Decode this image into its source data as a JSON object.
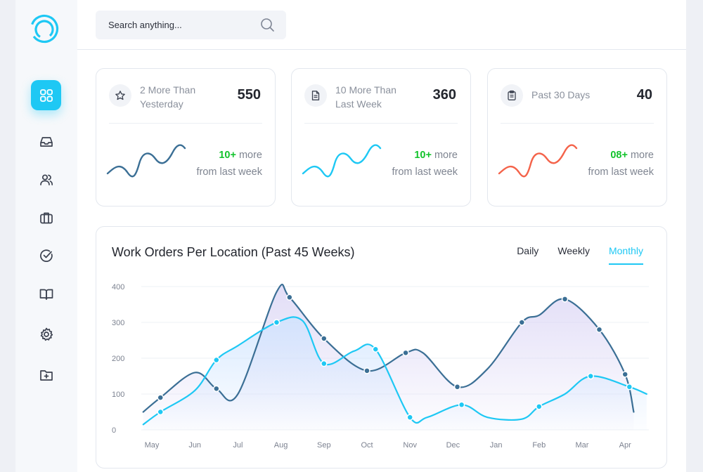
{
  "search": {
    "placeholder": "Search anything..."
  },
  "sidebar": {
    "items": [
      {
        "name": "dashboard-grid-icon",
        "active": true
      },
      {
        "name": "inbox-icon",
        "active": false
      },
      {
        "name": "users-icon",
        "active": false
      },
      {
        "name": "briefcase-icon",
        "active": false
      },
      {
        "name": "check-circle-icon",
        "active": false
      },
      {
        "name": "book-open-icon",
        "active": false
      },
      {
        "name": "gear-icon",
        "active": false
      },
      {
        "name": "folder-plus-icon",
        "active": false
      }
    ]
  },
  "cards": [
    {
      "icon": "star-icon",
      "label": "2 More Than Yesterday",
      "value": "550",
      "note_num": "10+",
      "note_rest": " more",
      "note_line2": "from last week",
      "color": "#3b6f95",
      "num_color": "#13c32c"
    },
    {
      "icon": "document-icon",
      "label": "10 More Than Last Week",
      "value": "360",
      "note_num": "10+",
      "note_rest": " more",
      "note_line2": "from last week",
      "color": "#1ec8f4",
      "num_color": "#13c32c"
    },
    {
      "icon": "clipboard-icon",
      "label": "Past 30 Days",
      "value": "40",
      "note_num": "08+",
      "note_rest": " more",
      "note_line2": "from last week",
      "color": "#f4634a",
      "num_color": "#13c32c"
    }
  ],
  "chart": {
    "title": "Work Orders Per Location (Past 45 Weeks)",
    "tabs": [
      {
        "label": "Daily",
        "active": false
      },
      {
        "label": "Weekly",
        "active": false
      },
      {
        "label": "Monthly",
        "active": true
      }
    ]
  },
  "chart_data": {
    "type": "area",
    "categories": [
      "May",
      "Jun",
      "Jul",
      "Aug",
      "Sep",
      "Oct",
      "Nov",
      "Dec",
      "Jan",
      "Feb",
      "Mar",
      "Apr"
    ],
    "ylim": [
      0,
      400
    ],
    "yticks": [
      0,
      100,
      200,
      300,
      400
    ],
    "grid": true,
    "series": [
      {
        "color": "#3b6f95",
        "fill": "#d8d2f4",
        "x": [
          -0.2,
          0.2,
          1.0,
          1.5,
          2.0,
          2.9,
          3.2,
          4.0,
          5.0,
          5.9,
          6.3,
          7.1,
          7.8,
          8.6,
          9.0,
          9.6,
          10.4,
          11.0,
          11.2
        ],
        "y": [
          50,
          90,
          160,
          115,
          100,
          385,
          370,
          255,
          165,
          215,
          215,
          120,
          170,
          300,
          320,
          365,
          280,
          155,
          50
        ],
        "markers": [
          1,
          3,
          6,
          7,
          8,
          9,
          11,
          13,
          15,
          16,
          17
        ]
      },
      {
        "color": "#1ec8f4",
        "fill": "#cde3ff",
        "x": [
          -0.2,
          0.2,
          1.0,
          1.5,
          2.0,
          2.9,
          3.5,
          4.0,
          4.7,
          5.2,
          6.0,
          6.4,
          7.2,
          7.8,
          8.6,
          9.0,
          9.6,
          10.2,
          11.1,
          11.5
        ],
        "y": [
          15,
          50,
          110,
          195,
          235,
          300,
          305,
          185,
          220,
          225,
          35,
          35,
          70,
          35,
          30,
          65,
          100,
          150,
          120,
          100
        ],
        "markers": [
          1,
          3,
          5,
          7,
          9,
          10,
          12,
          15,
          17,
          18
        ]
      }
    ]
  }
}
